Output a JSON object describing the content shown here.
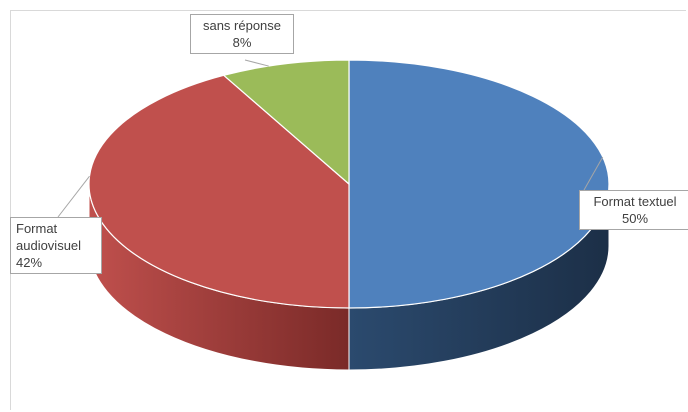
{
  "chart_data": {
    "type": "pie",
    "title": "",
    "slices": [
      {
        "label": "Format textuel",
        "value": 50,
        "value_label": "50%",
        "color": "#4F81BD",
        "side_color": "#2B4A6E"
      },
      {
        "label": "Format audiovisuel",
        "label_lines": [
          "Format",
          "audiovisuel"
        ],
        "value": 42,
        "value_label": "42%",
        "color": "#C0504D",
        "side_color": "#7A2A28"
      },
      {
        "label": "sans réponse",
        "value": 8,
        "value_label": "8%",
        "color": "#9BBB59",
        "side_color": "#5E7534"
      }
    ],
    "style": "3d",
    "legend": "none"
  }
}
